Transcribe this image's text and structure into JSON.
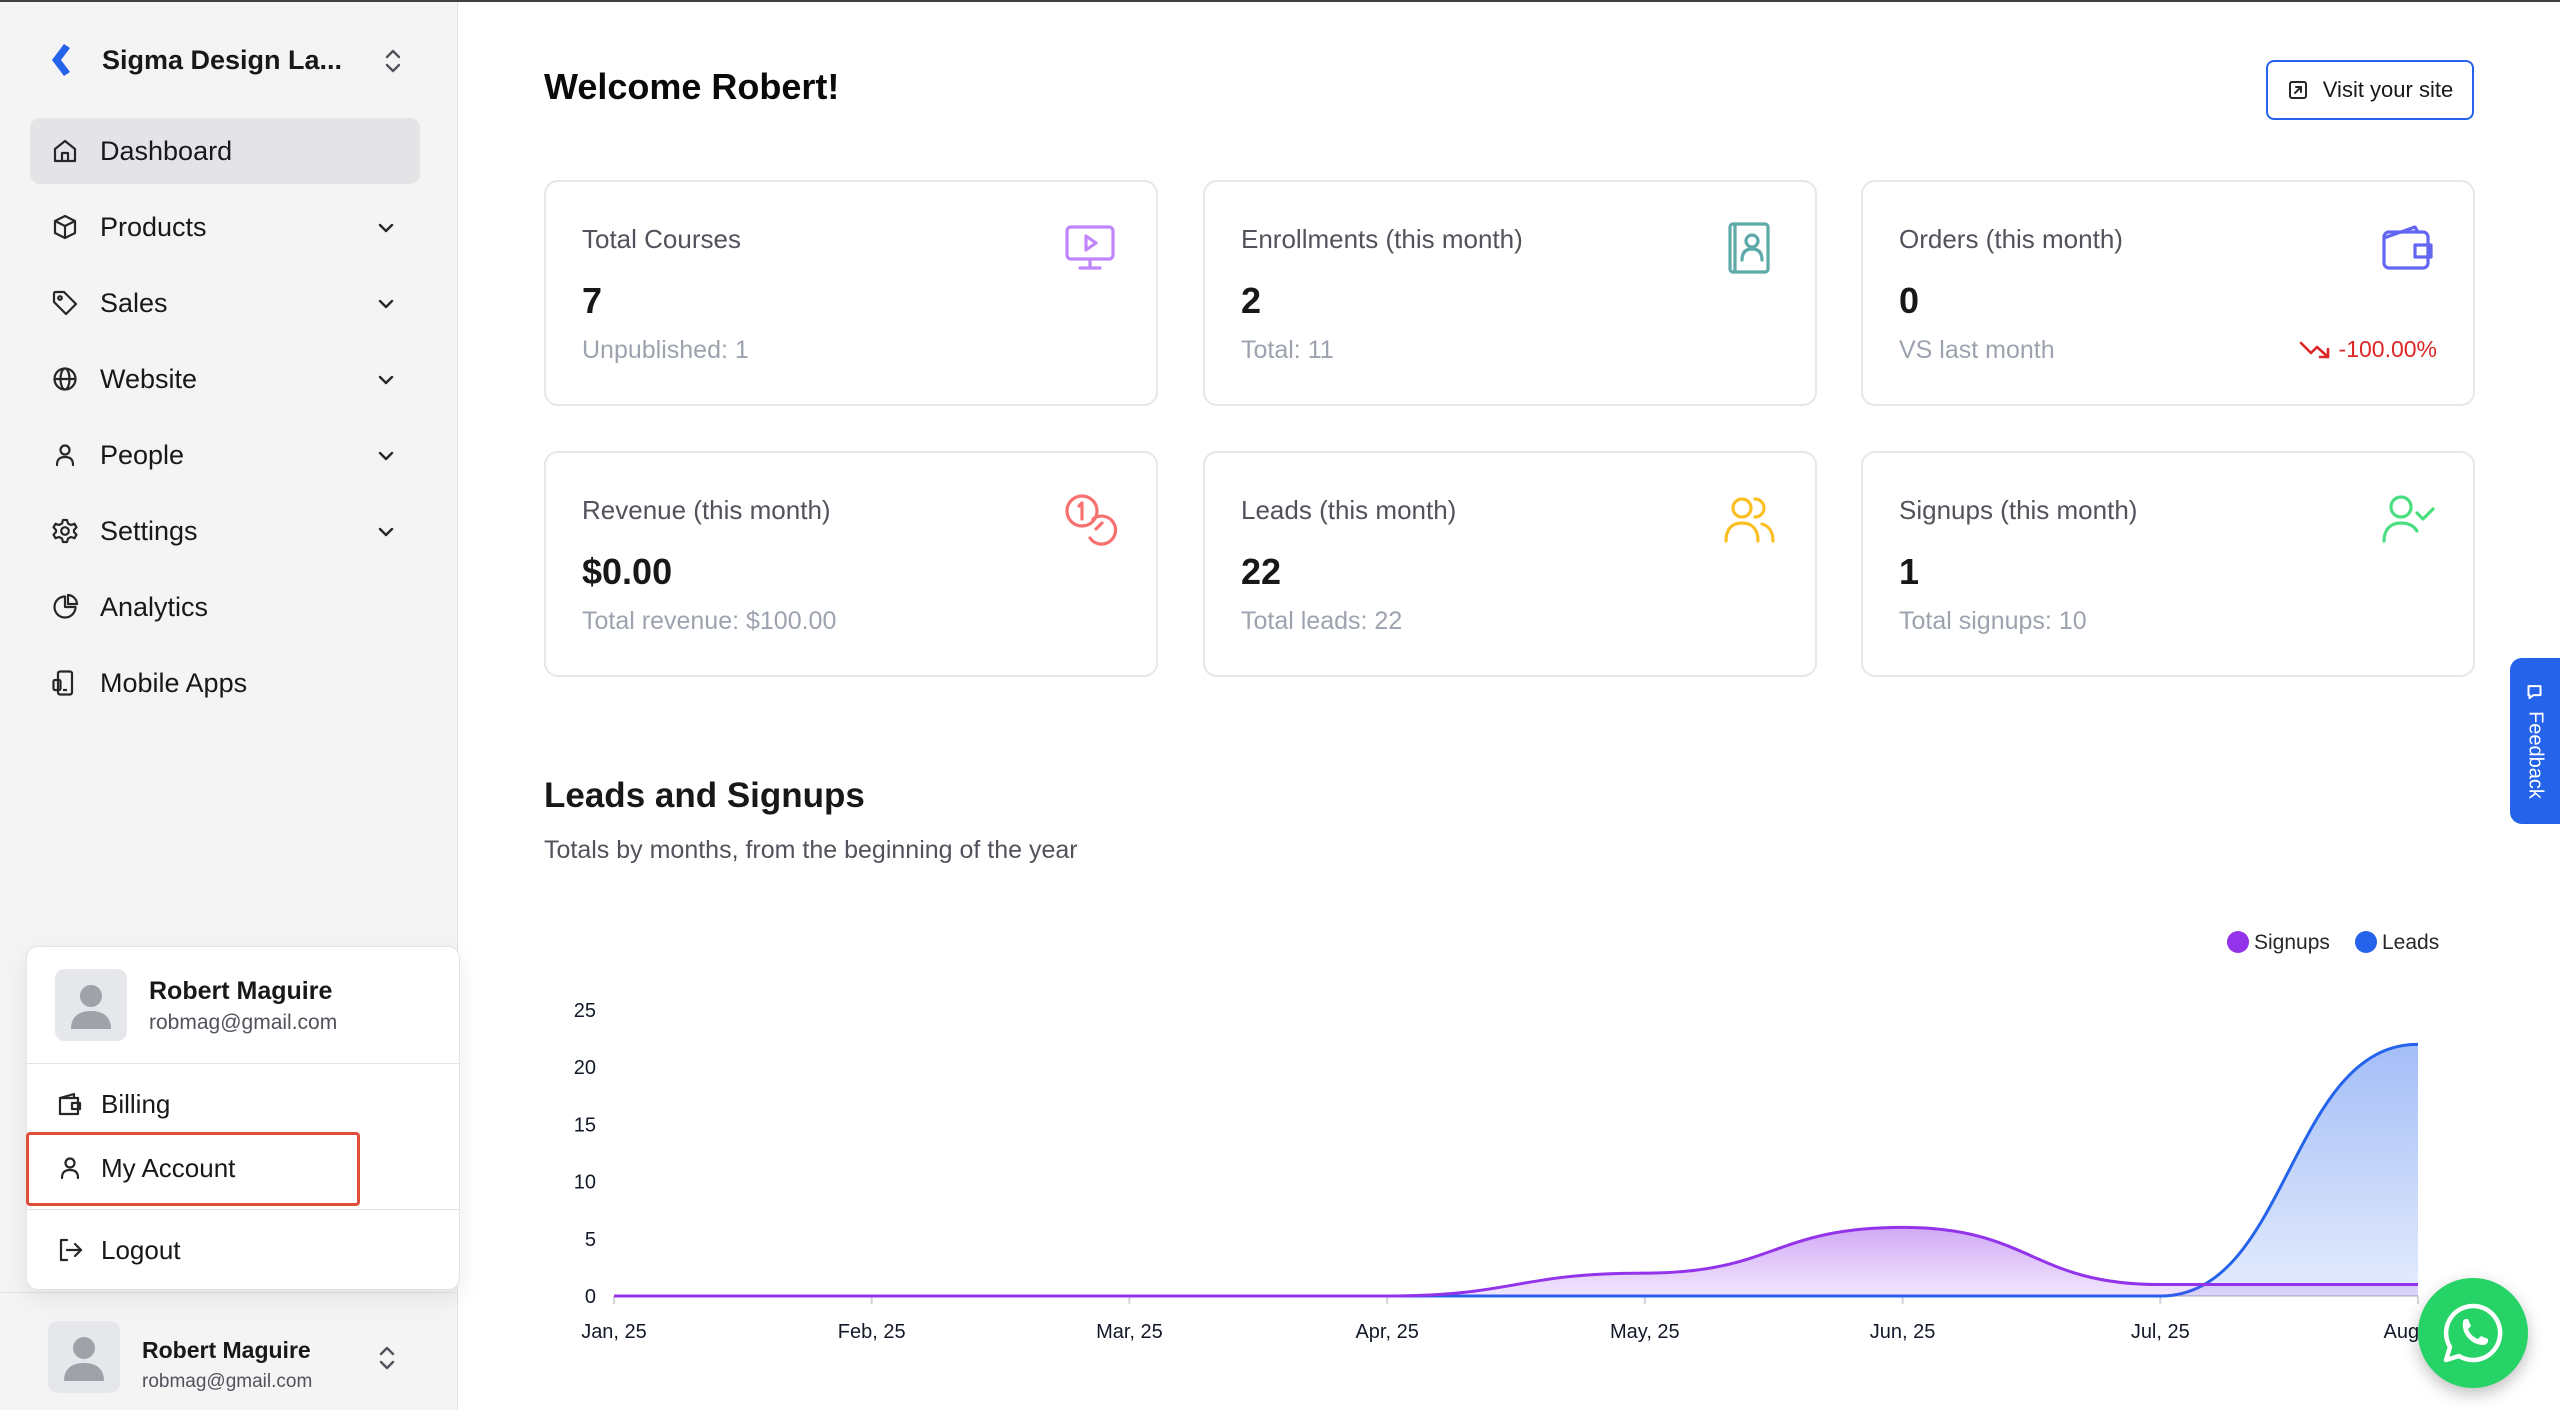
{
  "org": {
    "name": "Sigma Design La..."
  },
  "nav": {
    "items": [
      {
        "label": "Dashboard",
        "icon": "home-icon",
        "active": true
      },
      {
        "label": "Products",
        "icon": "box-icon"
      },
      {
        "label": "Sales",
        "icon": "tag-icon"
      },
      {
        "label": "Website",
        "icon": "globe-icon"
      },
      {
        "label": "People",
        "icon": "user-icon"
      },
      {
        "label": "Settings",
        "icon": "gear-icon"
      },
      {
        "label": "Analytics",
        "icon": "pie-chart-icon"
      },
      {
        "label": "Mobile Apps",
        "icon": "mobile-icon"
      }
    ]
  },
  "user": {
    "name": "Robert Maguire",
    "email": "robmag@gmail.com"
  },
  "menu": {
    "billing": "Billing",
    "my_account": "My Account",
    "logout": "Logout"
  },
  "header": {
    "welcome": "Welcome Robert!",
    "visit_label": "Visit your site"
  },
  "cards": [
    {
      "title": "Total Courses",
      "value": "7",
      "sub": "Unpublished: 1",
      "icon": "monitor-play-icon",
      "color": "#c084fc"
    },
    {
      "title": "Enrollments (this month)",
      "value": "2",
      "sub": "Total: 11",
      "icon": "contact-book-icon",
      "color": "#5eaaa8"
    },
    {
      "title": "Orders (this month)",
      "value": "0",
      "sub": "VS last month",
      "delta": "-100.00%",
      "icon": "wallet-icon",
      "color": "#6366f1"
    },
    {
      "title": "Revenue (this month)",
      "value": "$0.00",
      "sub": "Total revenue: $100.00",
      "icon": "coins-icon",
      "color": "#f87171"
    },
    {
      "title": "Leads (this month)",
      "value": "22",
      "sub": "Total leads: 22",
      "icon": "users-icon",
      "color": "#fbbf24"
    },
    {
      "title": "Signups (this month)",
      "value": "1",
      "sub": "Total signups: 10",
      "icon": "user-check-icon",
      "color": "#4ade80"
    }
  ],
  "section": {
    "title": "Leads and Signups",
    "subtitle": "Totals by months, from the beginning of the year"
  },
  "feedback_label": "Feedback",
  "chart_data": {
    "type": "area",
    "categories": [
      "Jan, 25",
      "Feb, 25",
      "Mar, 25",
      "Apr, 25",
      "May, 25",
      "Jun, 25",
      "Jul, 25",
      "Aug, 25"
    ],
    "series": [
      {
        "name": "Signups",
        "values": [
          0,
          0,
          0,
          0,
          2,
          6,
          1,
          1
        ],
        "color": "#9333ea"
      },
      {
        "name": "Leads",
        "values": [
          0,
          0,
          0,
          0,
          0,
          0,
          0,
          22
        ],
        "color": "#2563eb"
      }
    ],
    "ylim": [
      0,
      25
    ],
    "yticks": [
      0,
      5,
      10,
      15,
      20,
      25
    ],
    "legend": "top-right",
    "grid": false
  }
}
